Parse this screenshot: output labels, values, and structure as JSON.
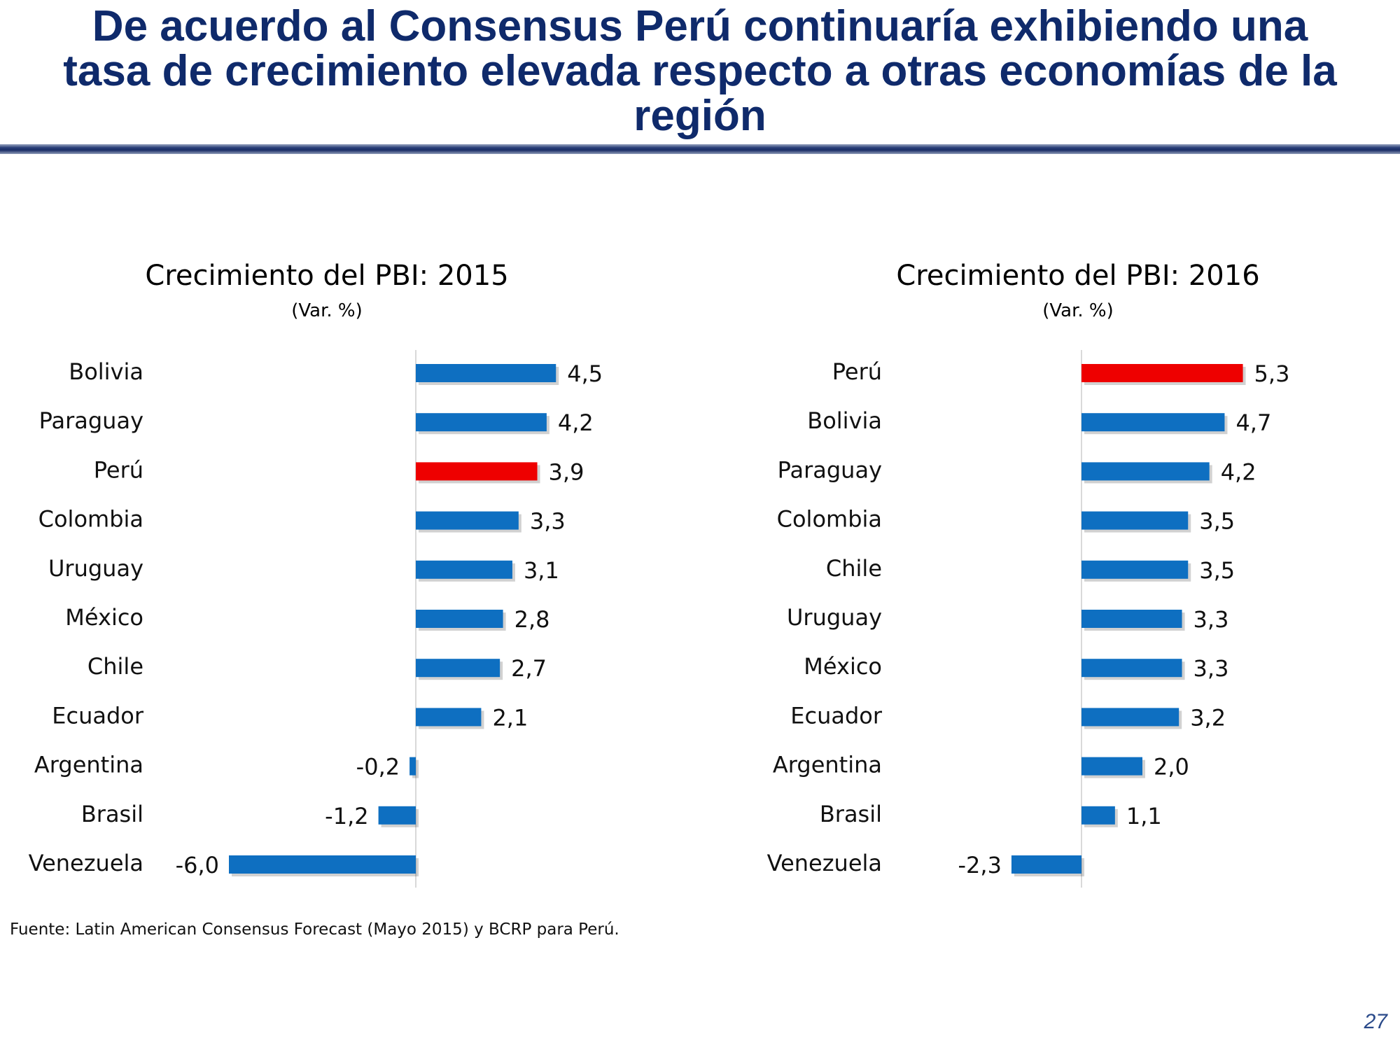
{
  "slide": {
    "title_lines": [
      "De acuerdo al Consensus Perú continuaría exhibiendo una",
      "tasa de crecimiento elevada respecto a otras economías de la",
      "región"
    ],
    "source": "Fuente: Latin American Consensus Forecast (Mayo 2015) y BCRP para Perú.",
    "page_number": "27"
  },
  "colors": {
    "bar": "#0e6fc1",
    "highlight": "#ee0000",
    "title": "#0f2a6b"
  },
  "chart_data": [
    {
      "type": "bar",
      "orientation": "horizontal",
      "title": "Crecimiento del PBI: 2015",
      "subtitle": "(Var. %)",
      "categories": [
        "Bolivia",
        "Paraguay",
        "Perú",
        "Colombia",
        "Uruguay",
        "México",
        "Chile",
        "Ecuador",
        "Argentina",
        "Brasil",
        "Venezuela"
      ],
      "values": [
        4.5,
        4.2,
        3.9,
        3.3,
        3.1,
        2.8,
        2.7,
        2.1,
        -0.2,
        -1.2,
        -6.0
      ],
      "value_labels": [
        "4,5",
        "4,2",
        "3,9",
        "3,3",
        "3,1",
        "2,8",
        "2,7",
        "2,1",
        "-0,2",
        "-1,2",
        "-6,0"
      ],
      "highlight": "Perú",
      "xlim": [
        -6.0,
        4.5
      ]
    },
    {
      "type": "bar",
      "orientation": "horizontal",
      "title": "Crecimiento del PBI: 2016",
      "subtitle": "(Var. %)",
      "categories": [
        "Perú",
        "Bolivia",
        "Paraguay",
        "Colombia",
        "Chile",
        "Uruguay",
        "México",
        "Ecuador",
        "Argentina",
        "Brasil",
        "Venezuela"
      ],
      "values": [
        5.3,
        4.7,
        4.2,
        3.5,
        3.5,
        3.3,
        3.3,
        3.2,
        2.0,
        1.1,
        -2.3
      ],
      "value_labels": [
        "5,3",
        "4,7",
        "4,2",
        "3,5",
        "3,5",
        "3,3",
        "3,3",
        "3,2",
        "2,0",
        "1,1",
        "-2,3"
      ],
      "highlight": "Perú",
      "xlim": [
        -2.3,
        5.3
      ]
    }
  ]
}
